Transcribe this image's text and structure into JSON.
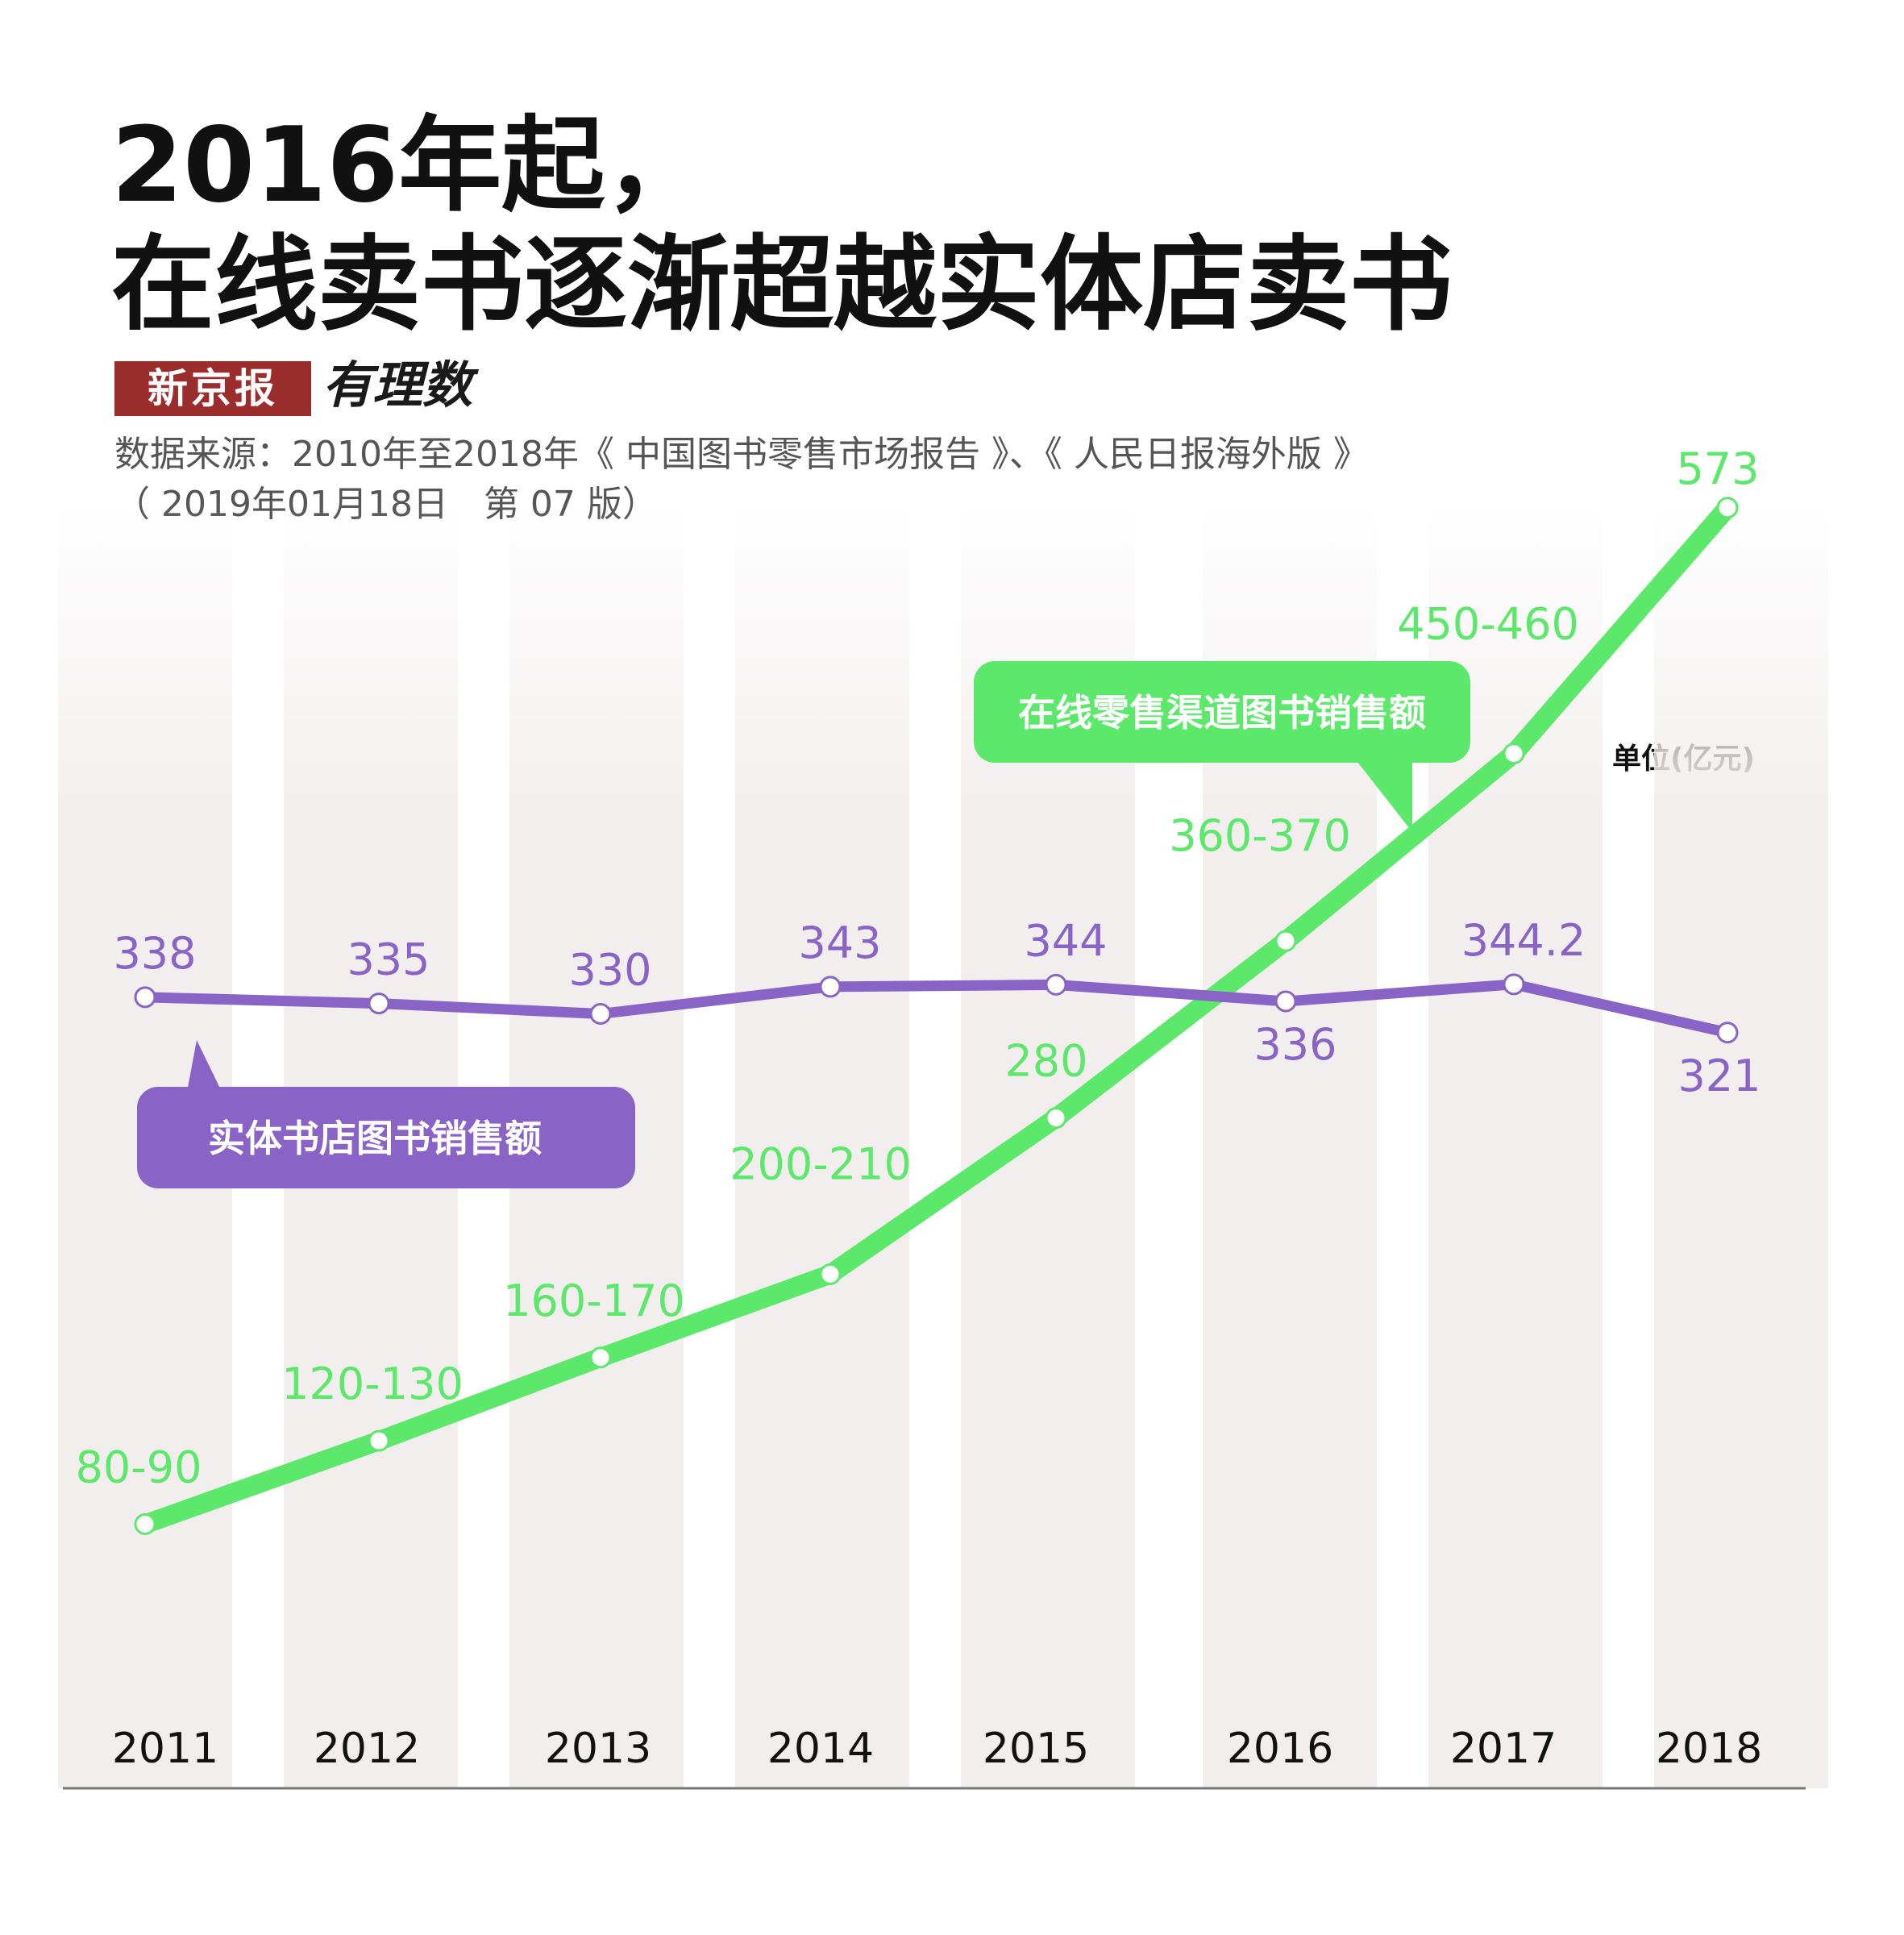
{
  "header": {
    "title_line1": "2016年起，",
    "title_line2": "在线卖书逐渐超越实体店卖书",
    "brand_badge": "新京报",
    "brand_script": "有理数",
    "source_line1": "数据来源：2010年至2018年《 中国图书零售市场报告 》、《 人民日报海外版 》",
    "source_line2": "（ 2019年01月18日　第 07 版）"
  },
  "unit": "单位(亿元)",
  "colors": {
    "online": "#5ce86a",
    "physical": "#8a63c6",
    "title": "#111111",
    "badge": "#9b2d2d",
    "column_bg": "#f3eeee"
  },
  "chart_data": {
    "type": "line",
    "categories": [
      "2011",
      "2012",
      "2013",
      "2014",
      "2015",
      "2016",
      "2017",
      "2018"
    ],
    "ylim": [
      0,
      600
    ],
    "grid": false,
    "series": [
      {
        "name": "在线零售渠道图书销售额",
        "values": [
          85,
          125,
          165,
          205,
          280,
          365,
          455,
          573
        ],
        "labels": [
          "80-90",
          "120-130",
          "160-170",
          "200-210",
          "280",
          "360-370",
          "450-460",
          "573"
        ]
      },
      {
        "name": "实体书店图书销售额",
        "values": [
          338,
          335,
          330,
          343,
          344,
          336,
          344.2,
          321
        ],
        "labels": [
          "338",
          "335",
          "330",
          "343",
          "344",
          "336",
          "344.2",
          "321"
        ]
      }
    ]
  }
}
